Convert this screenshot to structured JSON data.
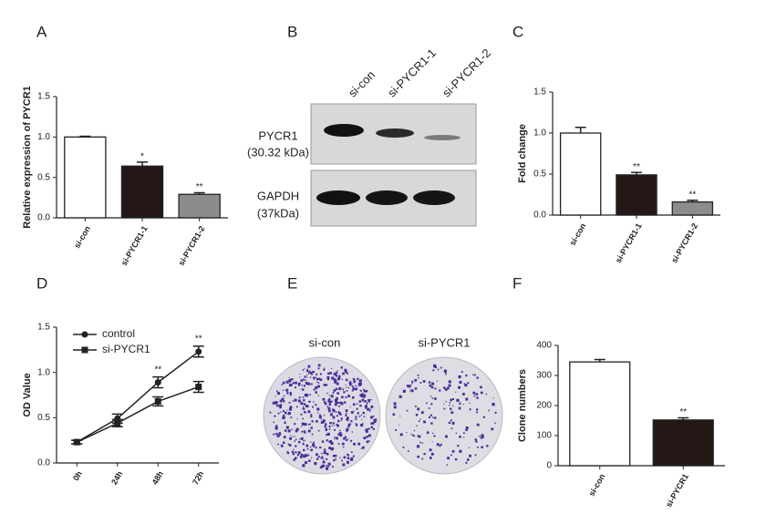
{
  "chart_data": [
    {
      "type": "bar",
      "panel": "A",
      "ylabel": "Relative expression of PYCR1",
      "categories": [
        "si-con",
        "si-PYCR1-1",
        "si-PYCR1-2"
      ],
      "values": [
        1.0,
        0.64,
        0.29
      ],
      "errors": [
        0.01,
        0.05,
        0.02
      ],
      "colors": [
        "#ffffff",
        "#231815",
        "#8c8c8c"
      ],
      "annotations": [
        null,
        "*",
        "**"
      ],
      "ylim": [
        0,
        1.5
      ],
      "yticks": [
        {
          "value": 0,
          "label": "0.0"
        },
        0.5,
        {
          "value": 1,
          "label": "1.0"
        },
        1.5
      ]
    },
    {
      "type": "bar",
      "panel": "C",
      "ylabel": "Fold change",
      "categories": [
        "si-con",
        "si-PYCR1-1",
        "si-PYCR1-2"
      ],
      "values": [
        1.0,
        0.49,
        0.16
      ],
      "errors": [
        0.07,
        0.03,
        0.02
      ],
      "colors": [
        "#ffffff",
        "#231815",
        "#8c8c8c"
      ],
      "annotations": [
        null,
        "**",
        "**"
      ],
      "ylim": [
        0,
        1.5
      ],
      "yticks": [
        {
          "value": 0,
          "label": "0.0"
        },
        0.5,
        {
          "value": 1,
          "label": "1.0"
        },
        1.5
      ]
    },
    {
      "type": "line",
      "panel": "D",
      "ylabel": "OD Value",
      "categories": [
        "0h",
        "24h",
        "48h",
        "72h"
      ],
      "series": [
        {
          "name": "control",
          "color": "#222222",
          "marker": "circle",
          "values": [
            0.23,
            0.49,
            0.89,
            1.23
          ],
          "errors": [
            0.02,
            0.05,
            0.06,
            0.06
          ]
        },
        {
          "name": "si-PYCR1",
          "color": "#222222",
          "marker": "square",
          "values": [
            0.23,
            0.44,
            0.68,
            0.84
          ],
          "errors": [
            0.02,
            0.04,
            0.05,
            0.06
          ]
        }
      ],
      "annotations": [
        null,
        null,
        "**",
        "**"
      ],
      "ylim": [
        0,
        1.5
      ],
      "yticks": [
        {
          "value": 0,
          "label": "0.0"
        },
        0.5,
        {
          "value": 1,
          "label": "1.0"
        },
        1.5
      ]
    },
    {
      "type": "bar",
      "panel": "F",
      "ylabel": "Clone numbers",
      "categories": [
        "si-con",
        "si-PYCR1"
      ],
      "values": [
        345,
        152
      ],
      "errors": [
        8,
        7
      ],
      "colors": [
        "#ffffff",
        "#231815"
      ],
      "annotations": [
        null,
        "**"
      ],
      "ylim": [
        0,
        400
      ],
      "yticks": [
        0,
        100,
        200,
        300,
        400
      ]
    }
  ],
  "blot": {
    "panel": "B",
    "lanes": [
      "si-con",
      "si-PYCR1-1",
      "si-PYCR1-2"
    ],
    "rows": [
      {
        "name": "PYCR1",
        "weight": "(30.32 kDa)"
      },
      {
        "name": "GAPDH",
        "weight": "(37kDa)"
      }
    ]
  },
  "colony": {
    "panel": "E",
    "labels": [
      "si-con",
      "si-PYCR1"
    ]
  }
}
